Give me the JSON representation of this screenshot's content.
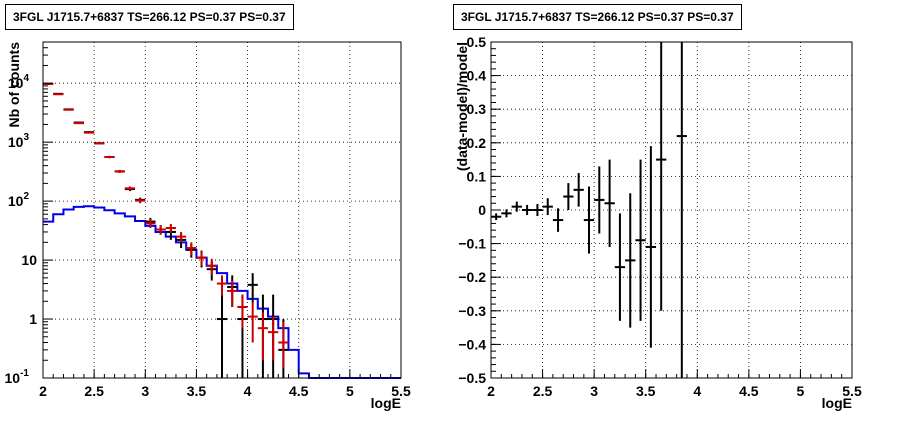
{
  "chart_data": [
    {
      "type": "line",
      "title": "3FGL J1715.7+6837 TS=266.12 PS=0.37 PS=0.37",
      "xlabel": "logE",
      "ylabel": "Nb of counts",
      "xlim": [
        2,
        5.5
      ],
      "ylim": [
        0.1,
        50000
      ],
      "y_scale": "log",
      "grid": true,
      "x_ticks": [
        "2",
        "2.5",
        "3",
        "3.5",
        "4",
        "4.5",
        "5",
        "5.5"
      ],
      "y_ticks": [
        {
          "v": 0.1,
          "base": "10",
          "exp": "-1"
        },
        {
          "v": 1,
          "base": "1",
          "exp": ""
        },
        {
          "v": 10,
          "base": "10",
          "exp": ""
        },
        {
          "v": 100,
          "base": "10",
          "exp": "2"
        },
        {
          "v": 1000,
          "base": "10",
          "exp": "3"
        },
        {
          "v": 10000,
          "base": "10",
          "exp": "4"
        }
      ],
      "series": [
        {
          "style": "histogram",
          "color": "#0000ee",
          "bin_edges": [
            2.0,
            2.1,
            2.2,
            2.3,
            2.4,
            2.5,
            2.6,
            2.7,
            2.8,
            2.9,
            3.0,
            3.1,
            3.2,
            3.3,
            3.4,
            3.5,
            3.6,
            3.7,
            3.8,
            3.9,
            4.0,
            4.1,
            4.2,
            4.3,
            4.4,
            4.5,
            4.6,
            4.7,
            4.8,
            4.9,
            5.0,
            5.1,
            5.2,
            5.3,
            5.4,
            5.5
          ],
          "values": [
            45,
            60,
            72,
            80,
            82,
            78,
            70,
            62,
            55,
            46,
            38,
            30,
            25,
            20,
            15,
            11,
            8,
            6,
            4,
            3,
            2.2,
            1.5,
            1.1,
            0.7,
            0.3,
            0.12,
            0.1,
            0.1,
            0.1,
            0.1,
            0.1,
            0.1,
            0.1,
            0.1,
            0.1
          ]
        },
        {
          "style": "errorbar",
          "color": "#000000",
          "x": [
            2.05,
            2.15,
            2.25,
            2.35,
            2.45,
            2.55,
            2.65,
            2.75,
            2.85,
            2.95,
            3.05,
            3.15,
            3.25,
            3.35,
            3.45,
            3.55,
            3.65,
            3.75,
            3.85,
            3.95,
            4.05,
            4.15,
            4.25,
            4.35
          ],
          "y": [
            9800,
            6600,
            3600,
            2150,
            1480,
            960,
            560,
            320,
            160,
            105,
            45,
            33,
            30,
            22,
            15,
            11,
            7,
            1,
            3.5,
            1,
            3.8,
            1,
            1,
            0.3
          ],
          "y_low": [
            9600,
            6450,
            3500,
            2080,
            1420,
            925,
            535,
            302,
            148,
            95,
            38,
            27,
            22,
            16,
            11,
            7.5,
            4.5,
            0.1,
            1.6,
            0.1,
            1.9,
            0.1,
            0.1,
            0.1
          ],
          "y_high": [
            10000,
            6750,
            3700,
            2230,
            1540,
            995,
            585,
            338,
            172,
            115,
            52,
            39,
            36,
            28,
            19,
            14.5,
            9.5,
            2.6,
            5.5,
            2.6,
            6,
            2.6,
            2.6,
            1
          ]
        },
        {
          "style": "errorbar",
          "color": "#cc0000",
          "x": [
            2.05,
            2.15,
            2.25,
            2.35,
            2.45,
            2.55,
            2.65,
            2.75,
            2.85,
            2.95,
            3.05,
            3.15,
            3.25,
            3.35,
            3.45,
            3.55,
            3.65,
            3.75,
            3.85,
            3.95,
            4.05,
            4.15,
            4.25,
            4.35
          ],
          "y": [
            9700,
            6500,
            3550,
            2100,
            1450,
            950,
            560,
            318,
            165,
            102,
            42,
            33,
            35,
            25,
            16,
            11,
            8,
            4,
            3,
            1.6,
            1.1,
            0.7,
            0.6,
            0.4
          ],
          "y_low": [
            9500,
            6350,
            3450,
            2030,
            1400,
            915,
            535,
            300,
            153,
            92,
            35,
            27,
            29,
            20,
            12,
            8,
            5.5,
            2.5,
            1.6,
            0.7,
            0.4,
            0.2,
            0.2,
            0.15
          ],
          "y_high": [
            9900,
            6650,
            3650,
            2170,
            1500,
            985,
            585,
            336,
            177,
            112,
            49,
            39,
            41,
            30,
            20,
            14,
            10.5,
            5.5,
            4.5,
            2.6,
            1.9,
            1.3,
            1.1,
            0.9
          ]
        }
      ]
    },
    {
      "type": "scatter",
      "title": "3FGL J1715.7+6837 TS=266.12 PS=0.37 PS=0.37",
      "xlabel": "logE",
      "ylabel": "(data-model)/model",
      "xlim": [
        2,
        5.5
      ],
      "ylim": [
        -0.5,
        0.5
      ],
      "grid": true,
      "x_ticks": [
        "2",
        "2.5",
        "3",
        "3.5",
        "4",
        "4.5",
        "5",
        "5.5"
      ],
      "y_ticks": [
        "−0.5",
        "−0.4",
        "−0.3",
        "−0.2",
        "−0.1",
        "0",
        "0.1",
        "0.2",
        "0.3",
        "0.4",
        "0.5"
      ],
      "series": [
        {
          "style": "errorbar",
          "color": "#000000",
          "x": [
            2.05,
            2.15,
            2.25,
            2.35,
            2.45,
            2.55,
            2.65,
            2.75,
            2.85,
            2.95,
            3.05,
            3.15,
            3.25,
            3.35,
            3.45,
            3.55,
            3.65,
            3.85
          ],
          "y": [
            -0.02,
            -0.01,
            0.01,
            0.0,
            0.0,
            0.01,
            -0.03,
            0.04,
            0.06,
            -0.03,
            0.03,
            0.02,
            -0.17,
            -0.15,
            -0.09,
            -0.11,
            0.15,
            0.22
          ],
          "y_err": [
            0.01,
            0.012,
            0.015,
            0.015,
            0.018,
            0.025,
            0.035,
            0.04,
            0.05,
            0.1,
            0.1,
            0.13,
            0.16,
            0.2,
            0.24,
            0.3,
            0.45,
            0.75
          ]
        }
      ]
    }
  ]
}
